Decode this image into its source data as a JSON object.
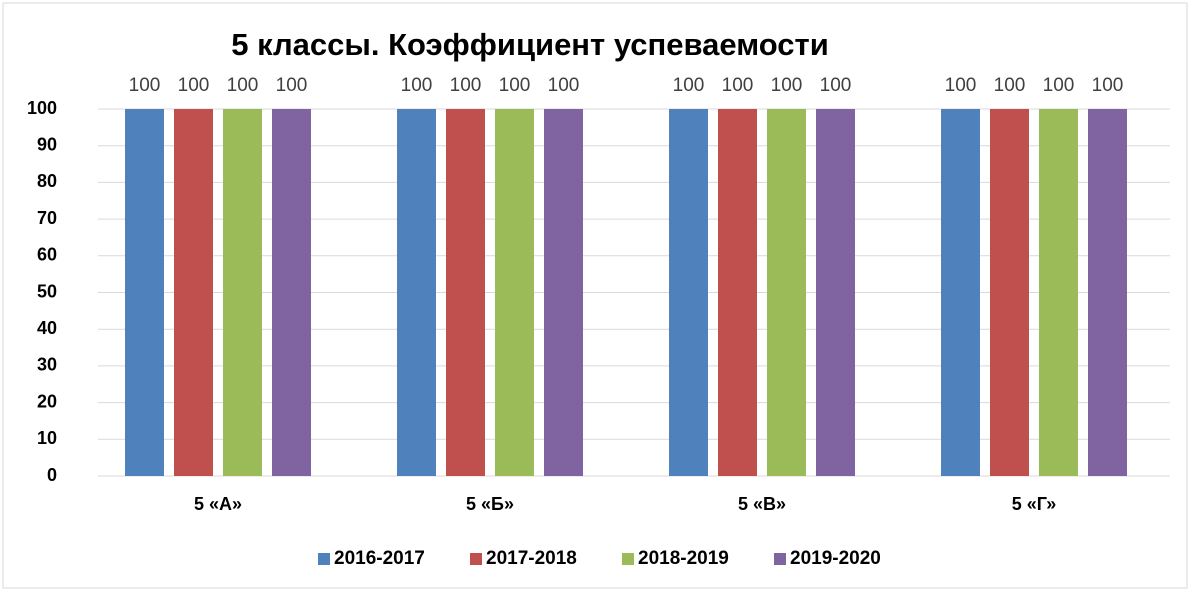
{
  "chart_data": {
    "type": "bar",
    "title": "5 классы. Коэффициент успеваемости",
    "categories": [
      "5 «А»",
      "5 «Б»",
      "5 «В»",
      "5 «Г»"
    ],
    "series": [
      {
        "name": "2016-2017",
        "color": "#4f81bd",
        "values": [
          100,
          100,
          100,
          100
        ]
      },
      {
        "name": "2017-2018",
        "color": "#c0504d",
        "values": [
          100,
          100,
          100,
          100
        ]
      },
      {
        "name": "2018-2019",
        "color": "#9bbb59",
        "values": [
          100,
          100,
          100,
          100
        ]
      },
      {
        "name": "2019-2020",
        "color": "#8064a2",
        "values": [
          100,
          100,
          100,
          100
        ]
      }
    ],
    "ylim": [
      0,
      100
    ],
    "yticks": [
      0,
      10,
      20,
      30,
      40,
      50,
      60,
      70,
      80,
      90,
      100
    ],
    "grid": true,
    "legend": "bottom"
  }
}
